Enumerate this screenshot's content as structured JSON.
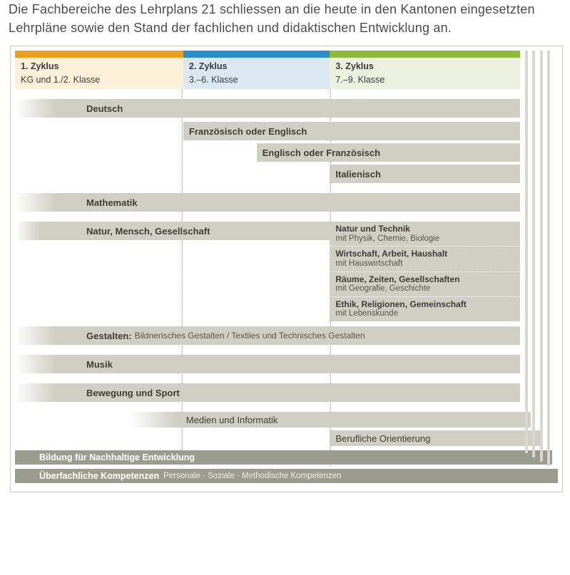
{
  "intro_text": "Die Fachbereiche des Lehrplans 21 schliessen an die heute in den Kantonen eingesetzten Lehrpläne sowie den Stand der fachlichen und didaktischen Entwicklung an.",
  "layout": {
    "columns": [
      {
        "start_pct": 0,
        "width_pct": 31
      },
      {
        "start_pct": 31,
        "width_pct": 27
      },
      {
        "start_pct": 58,
        "width_pct": 35
      }
    ],
    "content_width_pct": 93,
    "stack_offsets_pct": [
      93,
      95,
      97,
      99
    ]
  },
  "header": {
    "top_colors": [
      "#e8a023",
      "#2a8fc6",
      "#8fb93a"
    ],
    "body_colors": [
      "#fdf0d9",
      "#dbe8f2",
      "#ecf1df"
    ],
    "cycles": [
      {
        "title": "1. Zyklus",
        "subtitle": "KG und 1./2. Klasse"
      },
      {
        "title": "2. Zyklus",
        "subtitle": "3.–6. Klasse"
      },
      {
        "title": "3. Zyklus",
        "subtitle": "7.–9. Klasse"
      }
    ]
  },
  "rows": {
    "deutsch": "Deutsch",
    "fr_en": "Französisch oder Englisch",
    "en_fr": "Englisch oder Französisch",
    "en_fr_left_pct": 44.5,
    "italienisch": "Italienisch",
    "mathematik": "Mathematik",
    "nmg": "Natur, Mensch, Gesellschaft",
    "gestalten_label": "Gestalten:",
    "gestalten_sub": "Bildnerisches Gestalten / Textiles und Technisches Gestalten",
    "musik": "Musik",
    "sport": "Bewegung und Sport",
    "medien": "Medien und Informatik",
    "beruf": "Berufliche Orientierung"
  },
  "nmg_sub": [
    {
      "title": "Natur und Technik",
      "detail": "mit Physik, Chemie, Biologie"
    },
    {
      "title": "Wirtschaft, Arbeit, Haushalt",
      "detail": "mit Hauswirtschaft"
    },
    {
      "title": "Räume, Zeiten, Gesellschaften",
      "detail": "mit Geografie, Geschichte"
    },
    {
      "title": "Ethik, Religionen, Gemeinschaft",
      "detail": "mit Lebenskunde"
    }
  ],
  "footers": {
    "bne": "Bildung für Nachhaltige Entwicklung",
    "uefk_label": "Überfachliche Kompetenzen",
    "uefk_detail": "Personale · Soziale · Methodische Kompetenzen"
  },
  "colors": {
    "bar_gray": "#cfcfc3",
    "footer_gray": "#9c9c8e",
    "border": "#c9c9c0",
    "text": "#3e3e38"
  }
}
